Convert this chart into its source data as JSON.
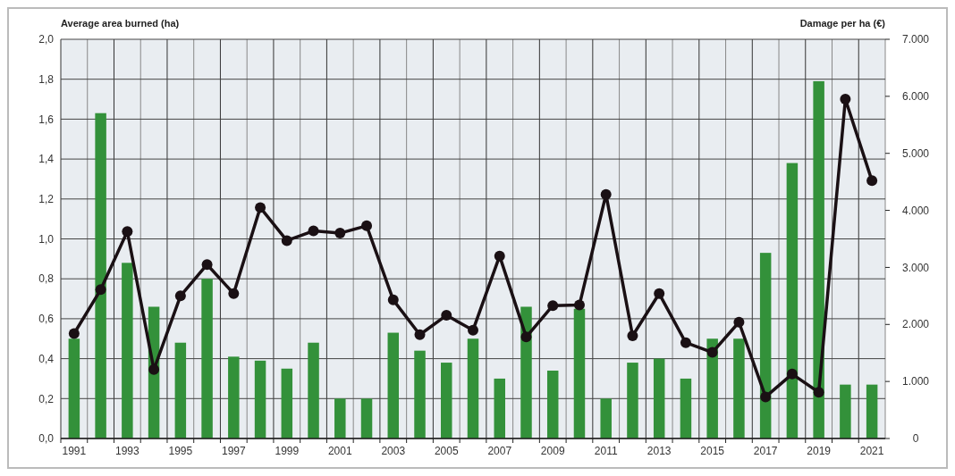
{
  "chart_data": {
    "type": "bar",
    "ylabel": "Average area burned (ha)",
    "y2label": "Damage per ha (€)",
    "categories": [
      "1991",
      null,
      "1993",
      null,
      "1995",
      null,
      "1997",
      null,
      "1999",
      null,
      "2001",
      null,
      "2003",
      null,
      "2005",
      null,
      "2007",
      null,
      "2009",
      null,
      "2011",
      null,
      "2013",
      null,
      "2015",
      null,
      "2017",
      null,
      "2019",
      null,
      "2021"
    ],
    "series": [
      {
        "color": "#33913a",
        "values": [
          0.5,
          1.63,
          0.88,
          0.66,
          0.48,
          0.8,
          0.41,
          0.39,
          0.35,
          0.48,
          0.2,
          0.2,
          0.53,
          0.44,
          0.38,
          0.5,
          0.3,
          0.66,
          0.34,
          0.65,
          0.2,
          0.38,
          0.4,
          0.3,
          0.5,
          0.5,
          0.93,
          1.38,
          1.79,
          0.27,
          0.27
        ]
      },
      {
        "type": "line",
        "axis": "y2",
        "color": "#1a1014",
        "marker": "circle",
        "line_style": "solid",
        "values": [
          1840,
          2610,
          3630,
          1210,
          2500,
          3050,
          2540,
          4050,
          3470,
          3640,
          3600,
          3730,
          2430,
          1820,
          2160,
          1900,
          3200,
          1780,
          2330,
          2340,
          4280,
          1800,
          2540,
          1680,
          1510,
          2040,
          730,
          1130,
          810,
          5950,
          4520
        ]
      }
    ],
    "ylim": [
      0,
      2
    ],
    "yticks": [
      {
        "value": 0,
        "label": "0,0"
      },
      {
        "value": 0.2,
        "label": "0,2"
      },
      {
        "value": 0.4,
        "label": "0,4"
      },
      {
        "value": 0.6,
        "label": "0,6"
      },
      {
        "value": 0.8,
        "label": "0,8"
      },
      {
        "value": 1,
        "label": "1,0"
      },
      {
        "value": 1.2,
        "label": "1,2"
      },
      {
        "value": 1.4,
        "label": "1,4"
      },
      {
        "value": 1.6,
        "label": "1,6"
      },
      {
        "value": 1.8,
        "label": "1,8"
      },
      {
        "value": 2,
        "label": "2,0"
      }
    ],
    "y2lim": [
      0,
      7000
    ],
    "y2ticks": [
      0,
      {
        "value": 1000,
        "label": "1.000"
      },
      {
        "value": 2000,
        "label": "2.000"
      },
      {
        "value": 3000,
        "label": "3.000"
      },
      {
        "value": 4000,
        "label": "4.000"
      },
      {
        "value": 5000,
        "label": "5.000"
      },
      {
        "value": 6000,
        "label": "6.000"
      },
      {
        "value": 7000,
        "label": "7.000"
      }
    ],
    "grid": true
  }
}
